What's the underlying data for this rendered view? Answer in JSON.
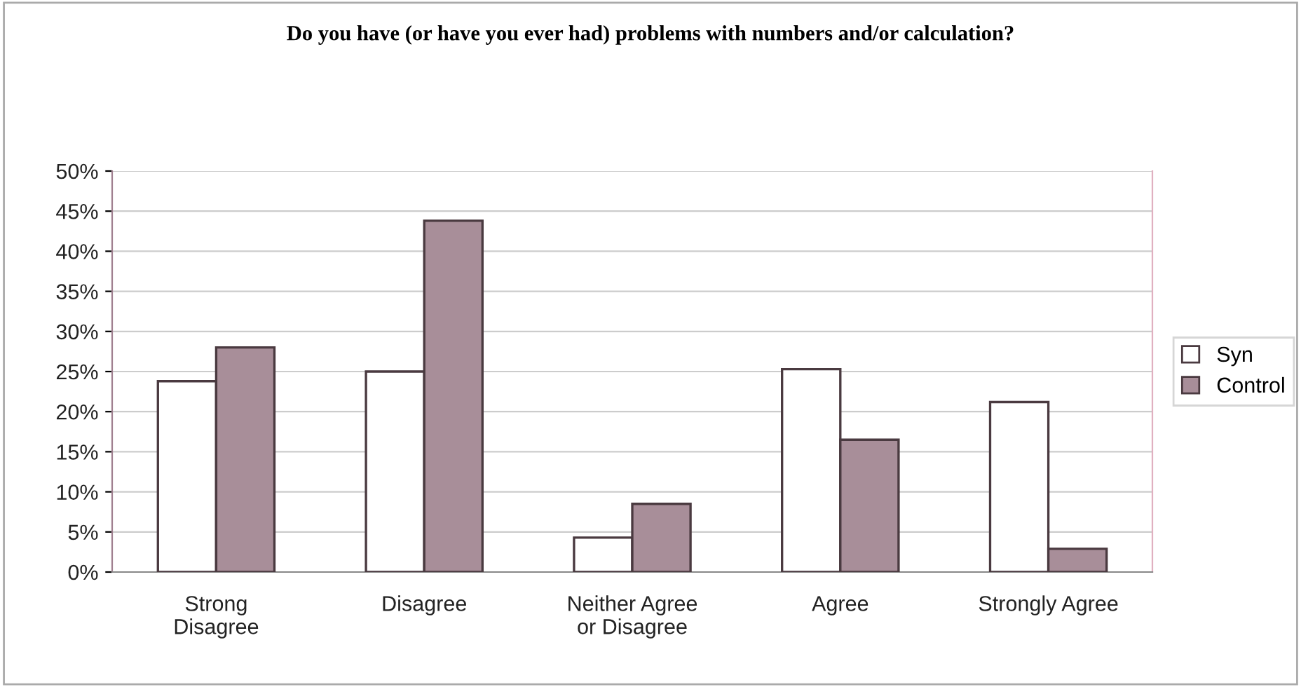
{
  "chart_data": {
    "type": "bar",
    "title": "Do you have (or have you ever had) problems with numbers and/or calculation?",
    "categories": [
      "Strong\nDisagree",
      "Disagree",
      "Neither Agree\nor Disagree",
      "Agree",
      "Strongly Agree"
    ],
    "series": [
      {
        "name": "Syn",
        "color": "#ffffff",
        "values": [
          23.8,
          25,
          4.3,
          25.3,
          21.2
        ]
      },
      {
        "name": "Control",
        "color": "#a88e99",
        "values": [
          28,
          43.8,
          8.5,
          16.5,
          2.9
        ]
      }
    ],
    "ylim": [
      0,
      50
    ],
    "yticks": [
      {
        "value": 0,
        "label": "0%"
      },
      {
        "value": 5,
        "label": "5%"
      },
      {
        "value": 10,
        "label": "10%"
      },
      {
        "value": 15,
        "label": "15%"
      },
      {
        "value": 20,
        "label": "20%"
      },
      {
        "value": 25,
        "label": "25%"
      },
      {
        "value": 30,
        "label": "30%"
      },
      {
        "value": 35,
        "label": "35%"
      },
      {
        "value": 40,
        "label": "40%"
      },
      {
        "value": 45,
        "label": "45%"
      },
      {
        "value": 50,
        "label": "50%"
      }
    ],
    "grid": "y",
    "legend": "right"
  }
}
